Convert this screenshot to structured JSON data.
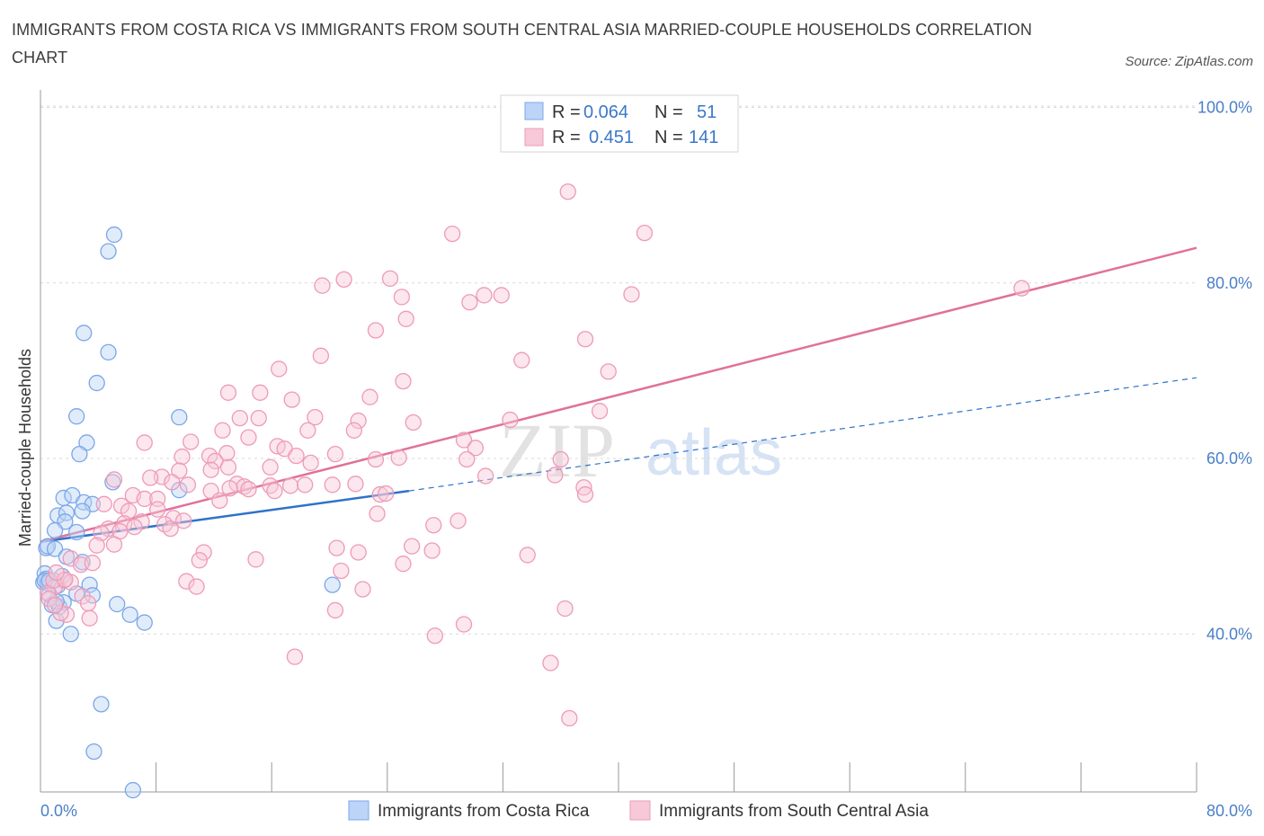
{
  "title": "IMMIGRANTS FROM COSTA RICA VS IMMIGRANTS FROM SOUTH CENTRAL ASIA MARRIED-COUPLE HOUSEHOLDS CORRELATION CHART",
  "source": "Source: ZipAtlas.com",
  "watermark": {
    "zip": "ZIP",
    "atlas": "atlas"
  },
  "colors": {
    "blue": "#7ba7e8",
    "blue_fill": "#bcd4f7",
    "blue_line": "#2f72c9",
    "pink": "#ee9ab8",
    "pink_fill": "#f7c9d8",
    "pink_line": "#e0719a",
    "axis_text": "#4a7fc9",
    "grid": "#d9d9d9"
  },
  "legend": {
    "row1": {
      "r_label": "R = ",
      "r_value": "0.064",
      "n_label": "N = ",
      "n_value": "51"
    },
    "row2": {
      "r_label": "R = ",
      "r_value": "0.451",
      "n_label": "N = ",
      "n_value": "141"
    }
  },
  "chart_data": {
    "type": "scatter",
    "title": "IMMIGRANTS FROM COSTA RICA VS IMMIGRANTS FROM SOUTH CENTRAL ASIA MARRIED-COUPLE HOUSEHOLDS CORRELATION CHART",
    "xlabel": "",
    "ylabel": "Married-couple Households",
    "xlim": [
      0,
      80
    ],
    "ylim": [
      22,
      102
    ],
    "x_tick_labels": [
      "0.0%",
      "80.0%"
    ],
    "y_ticks": [
      {
        "value": 40,
        "label": "40.0%"
      },
      {
        "value": 60,
        "label": "60.0%"
      },
      {
        "value": 80,
        "label": "80.0%"
      },
      {
        "value": 100,
        "label": "100.0%"
      }
    ],
    "series": [
      {
        "name": "Immigrants from Costa Rica",
        "color": "blue",
        "trend": {
          "x0": 0,
          "y0": 50.5,
          "x1": 25.5,
          "y1": 56.3,
          "dash_to_x": 80,
          "dash_to_y": 69.2
        },
        "points": [
          [
            5.1,
            85.5
          ],
          [
            4.7,
            83.6
          ],
          [
            3.0,
            74.3
          ],
          [
            4.7,
            72.1
          ],
          [
            3.9,
            68.6
          ],
          [
            2.5,
            64.8
          ],
          [
            9.6,
            64.7
          ],
          [
            3.2,
            61.8
          ],
          [
            2.7,
            60.5
          ],
          [
            5.0,
            57.3
          ],
          [
            1.6,
            55.5
          ],
          [
            2.2,
            55.8
          ],
          [
            3.0,
            55.0
          ],
          [
            3.6,
            54.8
          ],
          [
            2.9,
            54.0
          ],
          [
            1.2,
            53.5
          ],
          [
            1.8,
            53.8
          ],
          [
            1.7,
            52.8
          ],
          [
            1.0,
            51.8
          ],
          [
            2.5,
            51.6
          ],
          [
            0.4,
            49.8
          ],
          [
            0.5,
            50.0
          ],
          [
            1.0,
            49.7
          ],
          [
            1.8,
            48.8
          ],
          [
            2.9,
            48.2
          ],
          [
            0.3,
            46.9
          ],
          [
            0.4,
            46.3
          ],
          [
            0.2,
            45.9
          ],
          [
            0.5,
            45.8
          ],
          [
            1.2,
            45.5
          ],
          [
            1.5,
            46.6
          ],
          [
            3.4,
            45.6
          ],
          [
            0.6,
            44.5
          ],
          [
            2.5,
            44.6
          ],
          [
            3.6,
            44.4
          ],
          [
            0.8,
            43.3
          ],
          [
            1.3,
            43.1
          ],
          [
            1.6,
            43.6
          ],
          [
            5.3,
            43.4
          ],
          [
            6.2,
            42.2
          ],
          [
            7.2,
            41.3
          ],
          [
            1.1,
            41.5
          ],
          [
            2.1,
            40.0
          ],
          [
            9.6,
            56.4
          ],
          [
            20.2,
            45.6
          ],
          [
            4.2,
            32.0
          ],
          [
            3.7,
            26.6
          ],
          [
            6.4,
            22.2
          ],
          [
            0.3,
            46.1
          ],
          [
            1.1,
            43.7
          ],
          [
            0.6,
            46.1
          ]
        ]
      },
      {
        "name": "Immigrants from South Central Asia",
        "color": "pink",
        "trend": {
          "x0": 0,
          "y0": 50.5,
          "x1": 80,
          "y1": 84.0
        },
        "points": [
          [
            36.5,
            90.4
          ],
          [
            41.8,
            85.7
          ],
          [
            28.5,
            85.6
          ],
          [
            21.0,
            80.4
          ],
          [
            24.2,
            80.5
          ],
          [
            19.5,
            79.7
          ],
          [
            40.9,
            78.7
          ],
          [
            30.7,
            78.6
          ],
          [
            25.0,
            78.4
          ],
          [
            29.7,
            77.8
          ],
          [
            31.9,
            78.6
          ],
          [
            25.3,
            75.9
          ],
          [
            23.2,
            74.6
          ],
          [
            37.7,
            73.6
          ],
          [
            19.4,
            71.7
          ],
          [
            33.3,
            71.2
          ],
          [
            16.5,
            70.2
          ],
          [
            39.3,
            69.9
          ],
          [
            25.1,
            68.8
          ],
          [
            13.0,
            67.5
          ],
          [
            15.2,
            67.5
          ],
          [
            22.8,
            67.0
          ],
          [
            17.4,
            66.7
          ],
          [
            38.7,
            65.4
          ],
          [
            13.8,
            64.6
          ],
          [
            15.1,
            64.6
          ],
          [
            22.0,
            64.3
          ],
          [
            19.0,
            64.7
          ],
          [
            25.8,
            64.1
          ],
          [
            32.5,
            64.4
          ],
          [
            12.6,
            63.2
          ],
          [
            18.5,
            63.2
          ],
          [
            21.7,
            63.2
          ],
          [
            14.4,
            62.4
          ],
          [
            29.3,
            62.1
          ],
          [
            16.4,
            61.4
          ],
          [
            7.2,
            61.8
          ],
          [
            10.4,
            61.9
          ],
          [
            16.9,
            61.1
          ],
          [
            30.1,
            61.2
          ],
          [
            17.7,
            60.3
          ],
          [
            11.7,
            60.3
          ],
          [
            9.8,
            60.2
          ],
          [
            12.9,
            60.6
          ],
          [
            20.4,
            60.5
          ],
          [
            23.2,
            59.9
          ],
          [
            24.8,
            60.1
          ],
          [
            29.5,
            59.9
          ],
          [
            36.0,
            59.9
          ],
          [
            12.1,
            59.7
          ],
          [
            13.0,
            59.0
          ],
          [
            18.7,
            59.5
          ],
          [
            15.9,
            59.0
          ],
          [
            11.8,
            58.7
          ],
          [
            9.6,
            58.6
          ],
          [
            8.4,
            57.9
          ],
          [
            5.1,
            57.6
          ],
          [
            30.8,
            58.0
          ],
          [
            35.6,
            58.1
          ],
          [
            7.6,
            57.8
          ],
          [
            9.1,
            57.3
          ],
          [
            10.2,
            57.0
          ],
          [
            13.6,
            57.1
          ],
          [
            14.1,
            56.8
          ],
          [
            15.9,
            56.9
          ],
          [
            17.3,
            56.9
          ],
          [
            18.3,
            57.0
          ],
          [
            20.2,
            57.0
          ],
          [
            21.8,
            57.1
          ],
          [
            11.8,
            56.3
          ],
          [
            13.1,
            56.6
          ],
          [
            14.4,
            56.5
          ],
          [
            16.2,
            56.3
          ],
          [
            23.5,
            55.9
          ],
          [
            37.6,
            56.7
          ],
          [
            37.7,
            55.9
          ],
          [
            6.4,
            55.8
          ],
          [
            7.2,
            55.4
          ],
          [
            8.1,
            55.4
          ],
          [
            12.4,
            55.2
          ],
          [
            4.4,
            54.8
          ],
          [
            5.6,
            54.6
          ],
          [
            6.1,
            54.0
          ],
          [
            8.1,
            54.2
          ],
          [
            9.2,
            53.2
          ],
          [
            7.0,
            52.8
          ],
          [
            8.6,
            52.5
          ],
          [
            9.0,
            52.0
          ],
          [
            5.8,
            52.6
          ],
          [
            6.5,
            52.2
          ],
          [
            4.7,
            52.0
          ],
          [
            4.2,
            51.5
          ],
          [
            5.5,
            51.7
          ],
          [
            23.3,
            53.7
          ],
          [
            27.2,
            52.4
          ],
          [
            28.9,
            52.9
          ],
          [
            20.5,
            49.8
          ],
          [
            25.7,
            50.0
          ],
          [
            27.1,
            49.5
          ],
          [
            3.9,
            50.1
          ],
          [
            5.1,
            50.2
          ],
          [
            11.3,
            49.3
          ],
          [
            22.0,
            49.3
          ],
          [
            33.7,
            49.0
          ],
          [
            11.0,
            48.4
          ],
          [
            14.9,
            48.5
          ],
          [
            2.1,
            48.6
          ],
          [
            2.8,
            47.9
          ],
          [
            3.6,
            48.1
          ],
          [
            20.8,
            47.2
          ],
          [
            25.1,
            48.0
          ],
          [
            1.6,
            46.1
          ],
          [
            2.1,
            45.9
          ],
          [
            1.0,
            45.4
          ],
          [
            10.1,
            46.0
          ],
          [
            10.8,
            45.4
          ],
          [
            22.3,
            45.1
          ],
          [
            0.5,
            44.7
          ],
          [
            0.6,
            44.0
          ],
          [
            2.9,
            44.3
          ],
          [
            3.3,
            43.5
          ],
          [
            1.8,
            42.2
          ],
          [
            20.4,
            42.7
          ],
          [
            1.4,
            42.4
          ],
          [
            36.3,
            42.9
          ],
          [
            3.4,
            41.8
          ],
          [
            29.3,
            41.1
          ],
          [
            27.3,
            39.8
          ],
          [
            17.6,
            37.4
          ],
          [
            35.3,
            36.7
          ],
          [
            36.6,
            30.4
          ],
          [
            67.9,
            79.4
          ],
          [
            0.9,
            46.1
          ],
          [
            1.7,
            46.2
          ],
          [
            1.1,
            47.0
          ],
          [
            1.0,
            43.3
          ],
          [
            23.9,
            56.0
          ],
          [
            9.9,
            52.9
          ]
        ]
      }
    ]
  }
}
